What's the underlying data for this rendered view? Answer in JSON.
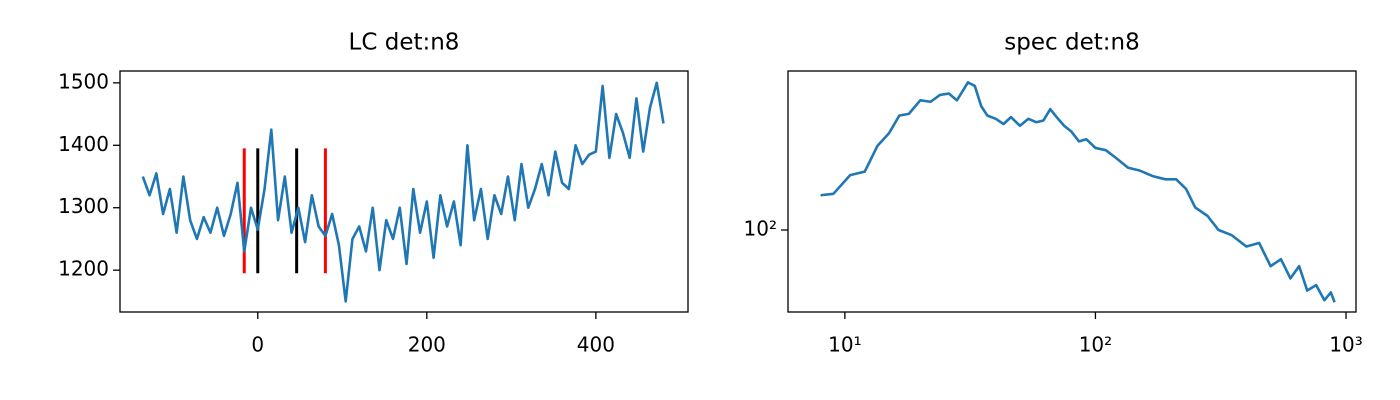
{
  "chart_data": [
    {
      "type": "line",
      "title": "LC det:n8",
      "x": [
        -136,
        -128,
        -120,
        -112,
        -104,
        -96,
        -88,
        -80,
        -72,
        -64,
        -56,
        -48,
        -40,
        -32,
        -24,
        -16,
        -8,
        0,
        8,
        16,
        24,
        32,
        40,
        48,
        56,
        64,
        72,
        80,
        88,
        96,
        104,
        112,
        120,
        128,
        136,
        144,
        152,
        160,
        168,
        176,
        184,
        192,
        200,
        208,
        216,
        224,
        232,
        240,
        248,
        256,
        264,
        272,
        280,
        288,
        296,
        304,
        312,
        320,
        328,
        336,
        344,
        352,
        360,
        368,
        376,
        384,
        392,
        400,
        408,
        416,
        424,
        432,
        440,
        448,
        456,
        464,
        472,
        480
      ],
      "series": [
        {
          "color": "#1f77b4",
          "values": [
            1350,
            1320,
            1355,
            1290,
            1330,
            1260,
            1350,
            1280,
            1250,
            1285,
            1260,
            1300,
            1255,
            1290,
            1340,
            1230,
            1300,
            1265,
            1330,
            1425,
            1280,
            1350,
            1260,
            1300,
            1245,
            1320,
            1270,
            1255,
            1290,
            1240,
            1150,
            1250,
            1270,
            1230,
            1300,
            1200,
            1280,
            1250,
            1300,
            1210,
            1330,
            1260,
            1310,
            1220,
            1320,
            1270,
            1310,
            1240,
            1400,
            1280,
            1330,
            1250,
            1320,
            1290,
            1350,
            1280,
            1370,
            1300,
            1330,
            1370,
            1320,
            1390,
            1340,
            1330,
            1400,
            1370,
            1385,
            1390,
            1495,
            1380,
            1450,
            1420,
            1380,
            1475,
            1390,
            1460,
            1500,
            1435
          ]
        }
      ],
      "vlines": [
        {
          "x": -16,
          "ymin": 1195,
          "ymax": 1395,
          "color": "#ff0000"
        },
        {
          "x": 0,
          "ymin": 1195,
          "ymax": 1395,
          "color": "#000000"
        },
        {
          "x": 46,
          "ymin": 1195,
          "ymax": 1395,
          "color": "#000000"
        },
        {
          "x": 80,
          "ymin": 1195,
          "ymax": 1395,
          "color": "#ff0000"
        }
      ],
      "xlim": [
        -163,
        509
      ],
      "xticks": [
        0,
        200,
        400
      ],
      "ylim": [
        1133,
        1519
      ],
      "yticks": [
        1200,
        1300,
        1400,
        1500
      ]
    },
    {
      "type": "line",
      "title": "spec det:n8",
      "xscale": "log",
      "yscale": "log",
      "x": [
        8,
        9,
        10.5,
        12,
        13.5,
        15,
        16.5,
        18,
        20,
        22,
        24,
        26,
        28,
        31,
        33,
        35,
        37,
        40,
        43,
        46,
        50,
        54,
        58,
        62,
        66,
        70,
        75,
        80,
        86,
        92,
        100,
        110,
        120,
        135,
        150,
        170,
        190,
        210,
        230,
        250,
        280,
        310,
        350,
        400,
        450,
        500,
        550,
        600,
        650,
        700,
        760,
        820,
        870,
        900
      ],
      "series": [
        {
          "color": "#1f77b4",
          "values": [
            141,
            143,
            172,
            178,
            230,
            260,
            310,
            315,
            360,
            355,
            380,
            385,
            360,
            430,
            415,
            340,
            310,
            300,
            285,
            305,
            280,
            300,
            290,
            295,
            330,
            305,
            280,
            265,
            240,
            245,
            225,
            220,
            205,
            185,
            180,
            170,
            165,
            165,
            150,
            125,
            115,
            100,
            95,
            85,
            88,
            70,
            75,
            62,
            70,
            55,
            58,
            50,
            54,
            49
          ]
        }
      ],
      "xlim": [
        5.93,
        1096
      ],
      "xticks": [
        {
          "value": 10,
          "label": "10¹"
        },
        {
          "value": 100,
          "label": "10²"
        },
        {
          "value": 1000,
          "label": "10³"
        }
      ],
      "ylim": [
        44.5,
        481
      ],
      "yticks": [
        {
          "value": 100,
          "label": "10²"
        }
      ]
    }
  ]
}
